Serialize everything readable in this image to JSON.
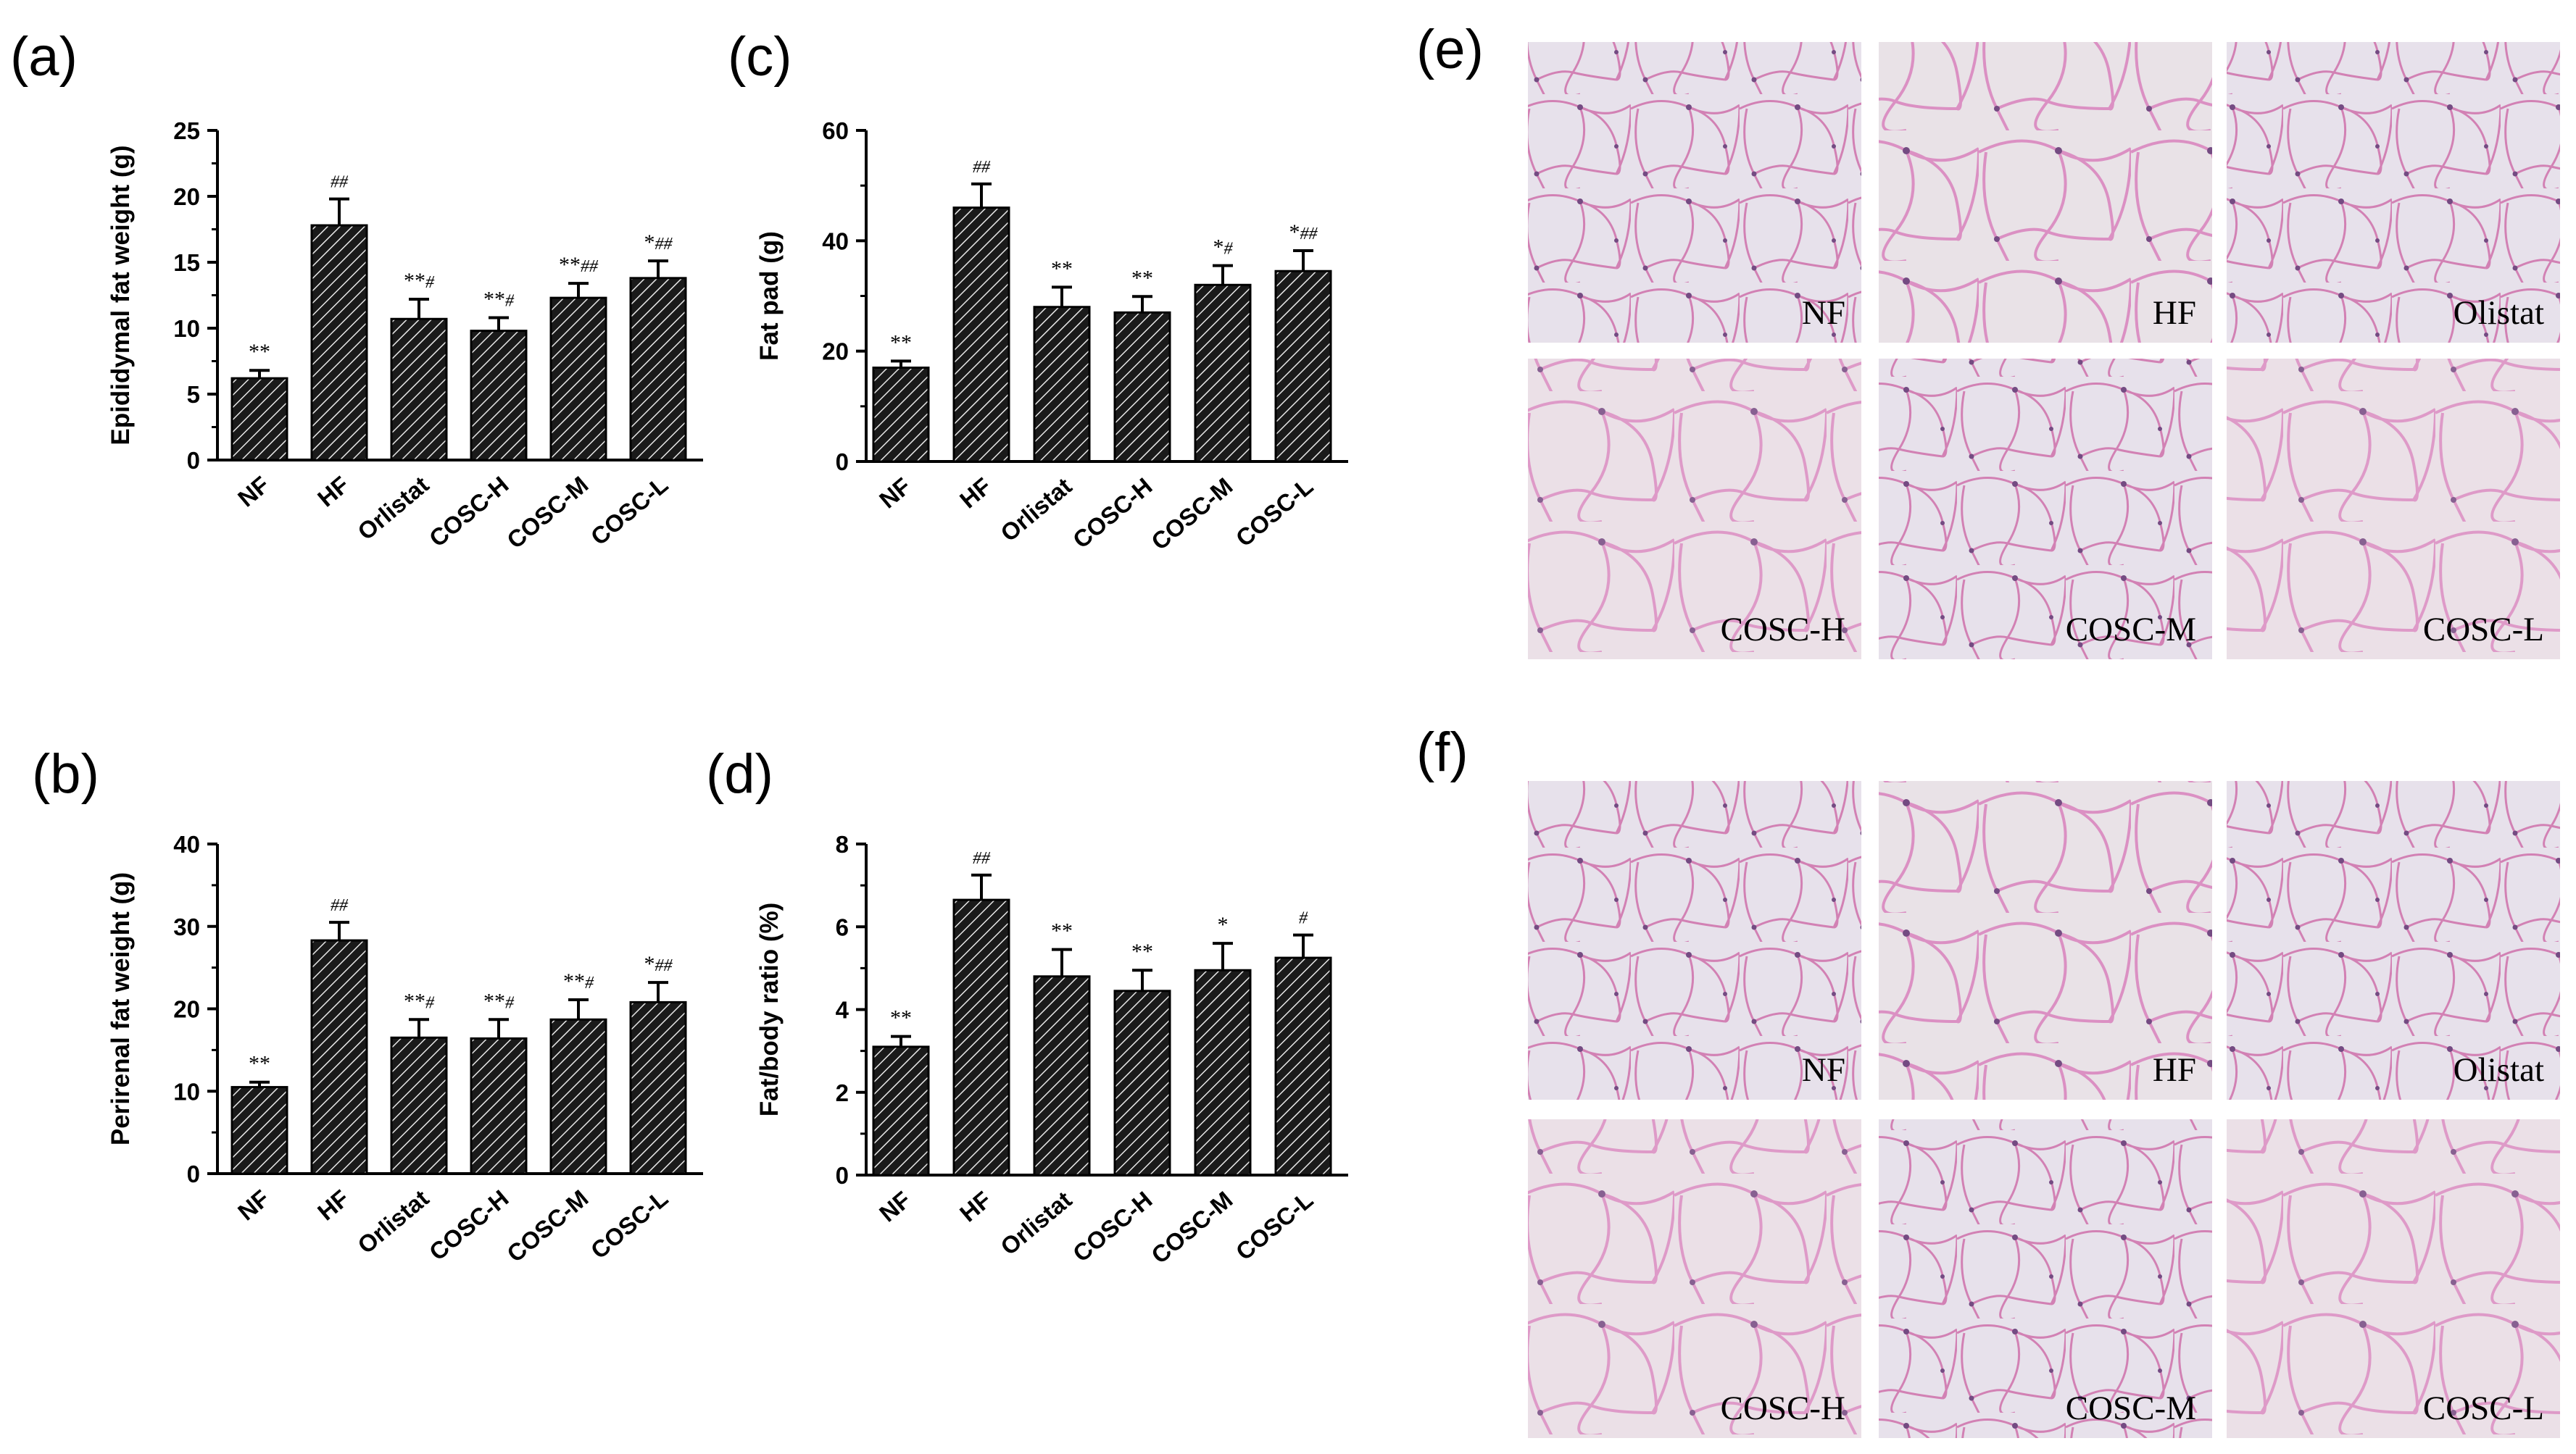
{
  "panels": {
    "a": "(a)",
    "b": "(b)",
    "c": "(c)",
    "d": "(d)",
    "e": "(e)",
    "f": "(f)"
  },
  "chart_data": [
    {
      "id": "a",
      "type": "bar",
      "categories": [
        "NF",
        "HF",
        "Orlistat",
        "COSC-H",
        "COSC-M",
        "COSC-L"
      ],
      "values": [
        6.2,
        17.8,
        10.7,
        9.8,
        12.3,
        13.8
      ],
      "errors": [
        0.6,
        2.0,
        1.5,
        1.0,
        1.1,
        1.3
      ],
      "annotations": [
        "**",
        "##",
        "**#",
        "**#",
        "**##",
        "*##"
      ],
      "ylabel": "Epididymal fat weight (g)",
      "ylim": [
        0,
        25
      ],
      "yticks": [
        0,
        5,
        10,
        15,
        20,
        25
      ]
    },
    {
      "id": "b",
      "type": "bar",
      "categories": [
        "NF",
        "HF",
        "Orlistat",
        "COSC-H",
        "COSC-M",
        "COSC-L"
      ],
      "values": [
        10.5,
        28.3,
        16.5,
        16.4,
        18.7,
        20.8
      ],
      "errors": [
        0.6,
        2.2,
        2.2,
        2.3,
        2.4,
        2.4
      ],
      "annotations": [
        "**",
        "##",
        "**#",
        "**#",
        "**#",
        "*##"
      ],
      "ylabel": "Perirenal fat weight (g)",
      "ylim": [
        0,
        40
      ],
      "yticks": [
        0,
        10,
        20,
        30,
        40
      ]
    },
    {
      "id": "c",
      "type": "bar",
      "categories": [
        "NF",
        "HF",
        "Orlistat",
        "COSC-H",
        "COSC-M",
        "COSC-L"
      ],
      "values": [
        17,
        46,
        28,
        27,
        32,
        34.5
      ],
      "errors": [
        1.2,
        4.3,
        3.6,
        2.9,
        3.5,
        3.7
      ],
      "annotations": [
        "**",
        "##",
        "**",
        "**",
        "*#",
        "*##"
      ],
      "ylabel": "Fat pad (g)",
      "ylim": [
        0,
        60
      ],
      "yticks": [
        0,
        20,
        40,
        60
      ]
    },
    {
      "id": "d",
      "type": "bar",
      "categories": [
        "NF",
        "HF",
        "Orlistat",
        "COSC-H",
        "COSC-M",
        "COSC-L"
      ],
      "values": [
        3.1,
        6.65,
        4.8,
        4.45,
        4.95,
        5.25
      ],
      "errors": [
        0.25,
        0.6,
        0.65,
        0.5,
        0.65,
        0.55
      ],
      "annotations": [
        "**",
        "##",
        "**",
        "**",
        "*",
        "#"
      ],
      "ylabel": "Fat/body ratio (%)",
      "ylim": [
        0,
        8
      ],
      "yticks": [
        0,
        2,
        4,
        6,
        8
      ]
    }
  ],
  "micrographs": {
    "e": [
      "NF",
      "HF",
      "Olistat",
      "COSC-H",
      "COSC-M",
      "COSC-L"
    ],
    "f": [
      "NF",
      "HF",
      "Olistat",
      "COSC-H",
      "COSC-M",
      "COSC-L"
    ]
  },
  "colors": {
    "bar_hatch_dark": "#1a1a1a",
    "bar_hatch_light": "#e8e8e8",
    "tissue_bg": "#e6e2ec",
    "membrane": "#d07ab0",
    "nucleus": "#6a3f7a"
  }
}
